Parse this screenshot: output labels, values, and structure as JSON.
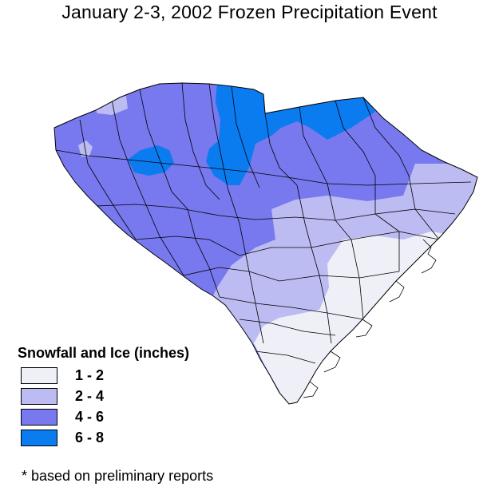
{
  "title": "January 2-3, 2002 Frozen Precipitation Event",
  "legend": {
    "title": "Snowfall and Ice (inches)",
    "items": [
      {
        "label": "1 - 2",
        "color": "#efeff8"
      },
      {
        "label": "2 - 4",
        "color": "#bcbcf3"
      },
      {
        "label": "4 - 6",
        "color": "#7878ef"
      },
      {
        "label": "6 - 8",
        "color": "#0a7cf0"
      }
    ]
  },
  "footnote": "* based on preliminary reports",
  "map": {
    "region": "South Carolina",
    "county_outlines": true,
    "colors": {
      "county_line": "#000000",
      "background": "#ffffff"
    }
  }
}
